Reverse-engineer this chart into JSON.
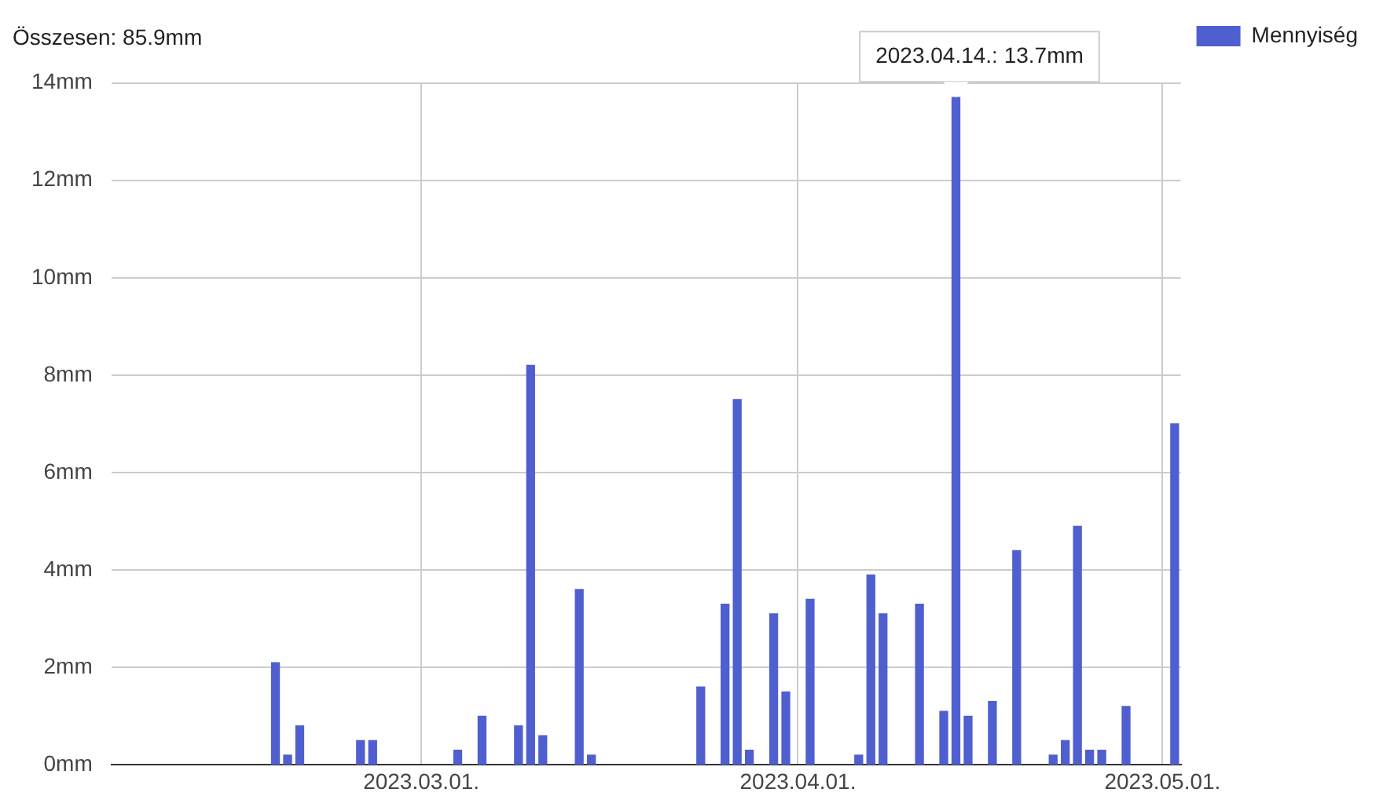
{
  "chart_data": {
    "type": "bar",
    "title": "Összesen: 85.9mm",
    "x": [
      "2023-02-17",
      "2023-02-18",
      "2023-02-19",
      "2023-02-24",
      "2023-02-25",
      "2023-03-04",
      "2023-03-06",
      "2023-03-09",
      "2023-03-10",
      "2023-03-11",
      "2023-03-14",
      "2023-03-15",
      "2023-03-24",
      "2023-03-26",
      "2023-03-27",
      "2023-03-28",
      "2023-03-30",
      "2023-03-31",
      "2023-04-02",
      "2023-04-06",
      "2023-04-07",
      "2023-04-08",
      "2023-04-11",
      "2023-04-13",
      "2023-04-14",
      "2023-04-15",
      "2023-04-17",
      "2023-04-19",
      "2023-04-22",
      "2023-04-23",
      "2023-04-24",
      "2023-04-25",
      "2023-04-26",
      "2023-04-28",
      "2023-05-02"
    ],
    "series": [
      {
        "name": "Mennyiség",
        "color": "#4f5fd0",
        "values": [
          2.1,
          0.2,
          0.8,
          0.5,
          0.5,
          0.3,
          1.0,
          0.8,
          8.2,
          0.6,
          3.6,
          0.2,
          1.6,
          3.3,
          7.5,
          0.3,
          3.1,
          1.5,
          3.4,
          0.2,
          3.9,
          3.1,
          3.3,
          1.1,
          13.7,
          1.0,
          1.3,
          4.4,
          0.2,
          0.5,
          4.9,
          0.3,
          0.3,
          1.2,
          7.0
        ]
      }
    ],
    "xlim": [
      "2023-02-03T12:00",
      "2023-05-02T12:00"
    ],
    "xticks": [
      {
        "value": "2023-03-01",
        "label": "2023.03.01."
      },
      {
        "value": "2023-04-01",
        "label": "2023.04.01."
      },
      {
        "value": "2023-05-01",
        "label": "2023.05.01."
      }
    ],
    "ylim": [
      0,
      14
    ],
    "yticks": [
      {
        "value": 0,
        "label": "0mm"
      },
      {
        "value": 2,
        "label": "2mm"
      },
      {
        "value": 4,
        "label": "4mm"
      },
      {
        "value": 6,
        "label": "6mm"
      },
      {
        "value": 8,
        "label": "8mm"
      },
      {
        "value": 10,
        "label": "10mm"
      },
      {
        "value": 12,
        "label": "12mm"
      },
      {
        "value": 14,
        "label": "14mm"
      }
    ],
    "annotations": [
      {
        "text": "2023.04.14.: 13.7mm",
        "x": "2023-04-14",
        "y": 13.7
      }
    ],
    "grid": true,
    "legend": "top right"
  }
}
